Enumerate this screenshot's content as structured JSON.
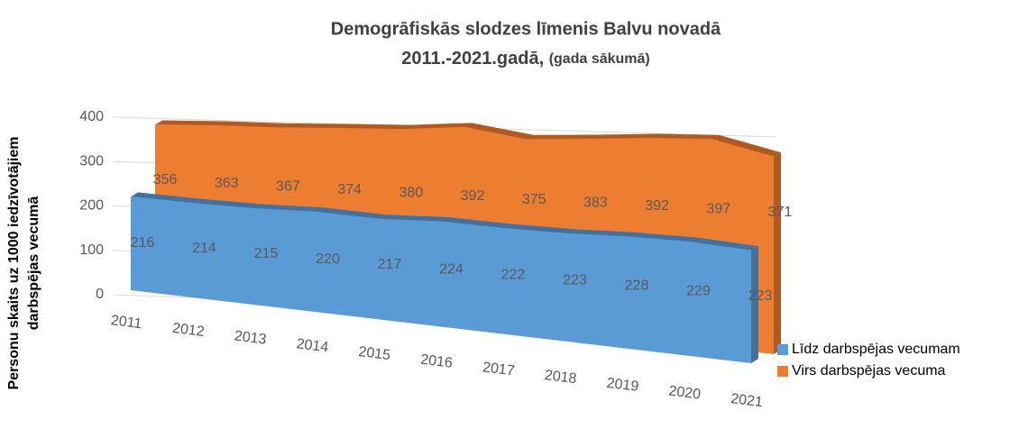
{
  "chart_data": {
    "type": "area3d",
    "title": "Demogrāfiskās slodzes līmenis Balvu novadā",
    "subtitle": "2011.-2021.gadā,",
    "title_note": "(gada sākumā)",
    "ylabel": [
      "Personu skaits uz 1000 iedzīvotājiem",
      "darbspējas vecumā"
    ],
    "categories": [
      "2011",
      "2012",
      "2013",
      "2014",
      "2015",
      "2016",
      "2017",
      "2018",
      "2019",
      "2020",
      "2021"
    ],
    "series": [
      {
        "name": "Līdz darbspējas vecumam",
        "color": "#5b9bd5",
        "values": [
          216,
          214,
          215,
          220,
          217,
          224,
          222,
          223,
          228,
          229,
          223
        ]
      },
      {
        "name": "Virs darbspējas vecuma",
        "color": "#ed7d31",
        "values": [
          356,
          363,
          367,
          374,
          380,
          392,
          375,
          383,
          392,
          397,
          371
        ]
      }
    ],
    "ylim": [
      0,
      400
    ],
    "yticks": [
      0,
      100,
      200,
      300,
      400
    ],
    "grid": true,
    "legend": "right"
  }
}
